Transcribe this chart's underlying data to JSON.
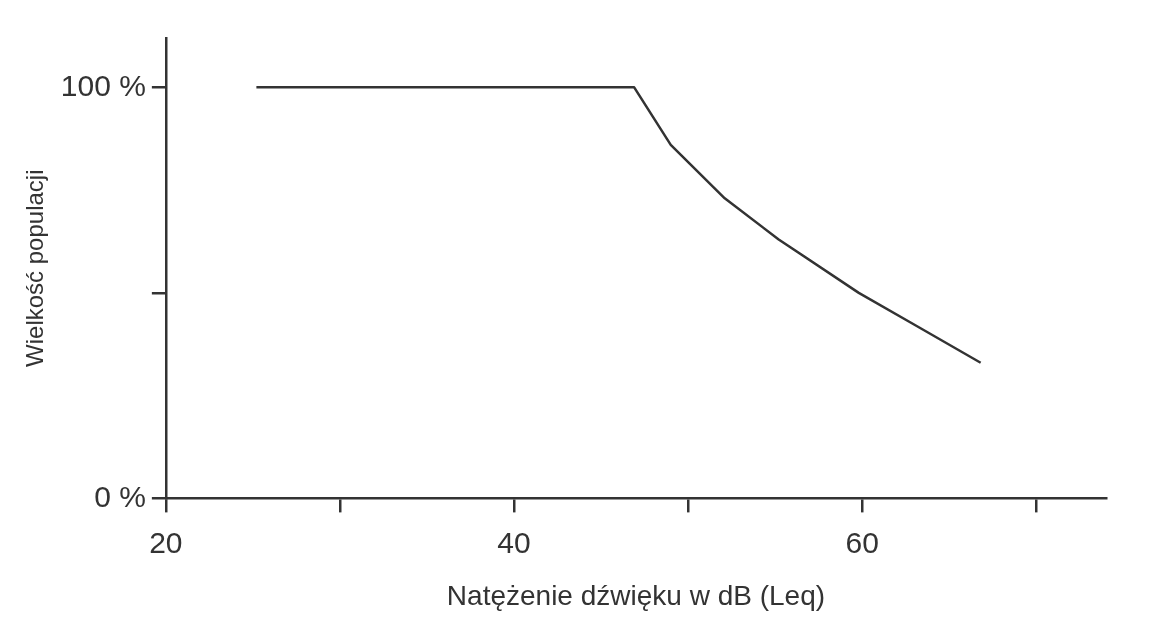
{
  "chart_data": {
    "type": "line",
    "xlabel": "Natężenie dźwięku w dB (Leq)",
    "ylabel": "Wielkość populacji",
    "x": [
      25.2,
      46.9,
      49,
      52.1,
      55.2,
      59.8,
      63.1,
      66.8
    ],
    "series": [
      {
        "color": "#333333",
        "values": [
          100,
          100,
          86,
          73,
          63,
          50,
          42,
          33
        ]
      }
    ],
    "xlim": [
      20,
      74
    ],
    "xticks": [
      20,
      {
        "value": 30,
        "label": null
      },
      40,
      {
        "value": 50,
        "label": null
      },
      60,
      {
        "value": 70,
        "label": null
      }
    ],
    "ylim": [
      0,
      112
    ],
    "yticks": [
      {
        "value": 0,
        "label": "0 %"
      },
      {
        "value": 50,
        "label": null
      },
      {
        "value": 100,
        "label": "100 %"
      }
    ],
    "grid": false,
    "legend": false,
    "marker": "none",
    "line_style": "solid"
  }
}
